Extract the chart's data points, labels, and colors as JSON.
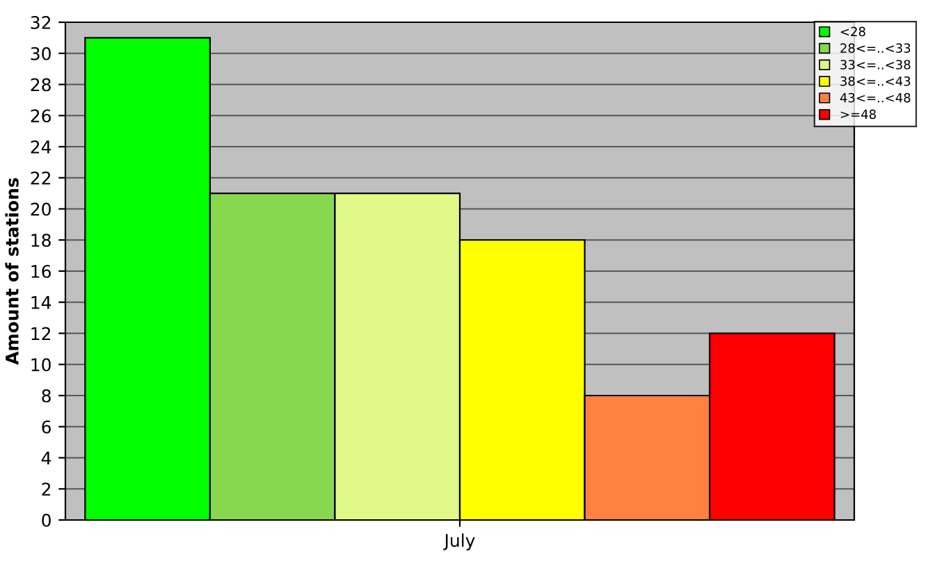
{
  "chart_data": {
    "type": "bar",
    "ylabel": "Amount of stations",
    "categories": [
      "July"
    ],
    "series": [
      {
        "name": "<28",
        "color": "#00ff00",
        "values": [
          31
        ]
      },
      {
        "name": "28<=..<33",
        "color": "#88d84f",
        "values": [
          21
        ]
      },
      {
        "name": "33<=..<38",
        "color": "#e0f888",
        "values": [
          21
        ]
      },
      {
        "name": "38<=..<43",
        "color": "#ffff00",
        "values": [
          18
        ]
      },
      {
        "name": "43<=..<48",
        "color": "#ff8040",
        "values": [
          8
        ]
      },
      {
        "name": ">=48",
        "color": "#ff0000",
        "values": [
          12
        ]
      }
    ],
    "ylim": [
      0,
      32
    ],
    "yticks": [
      0,
      2,
      4,
      6,
      8,
      10,
      12,
      14,
      16,
      18,
      20,
      22,
      24,
      26,
      28,
      30,
      32
    ],
    "grid": "y",
    "legend": "top right"
  }
}
